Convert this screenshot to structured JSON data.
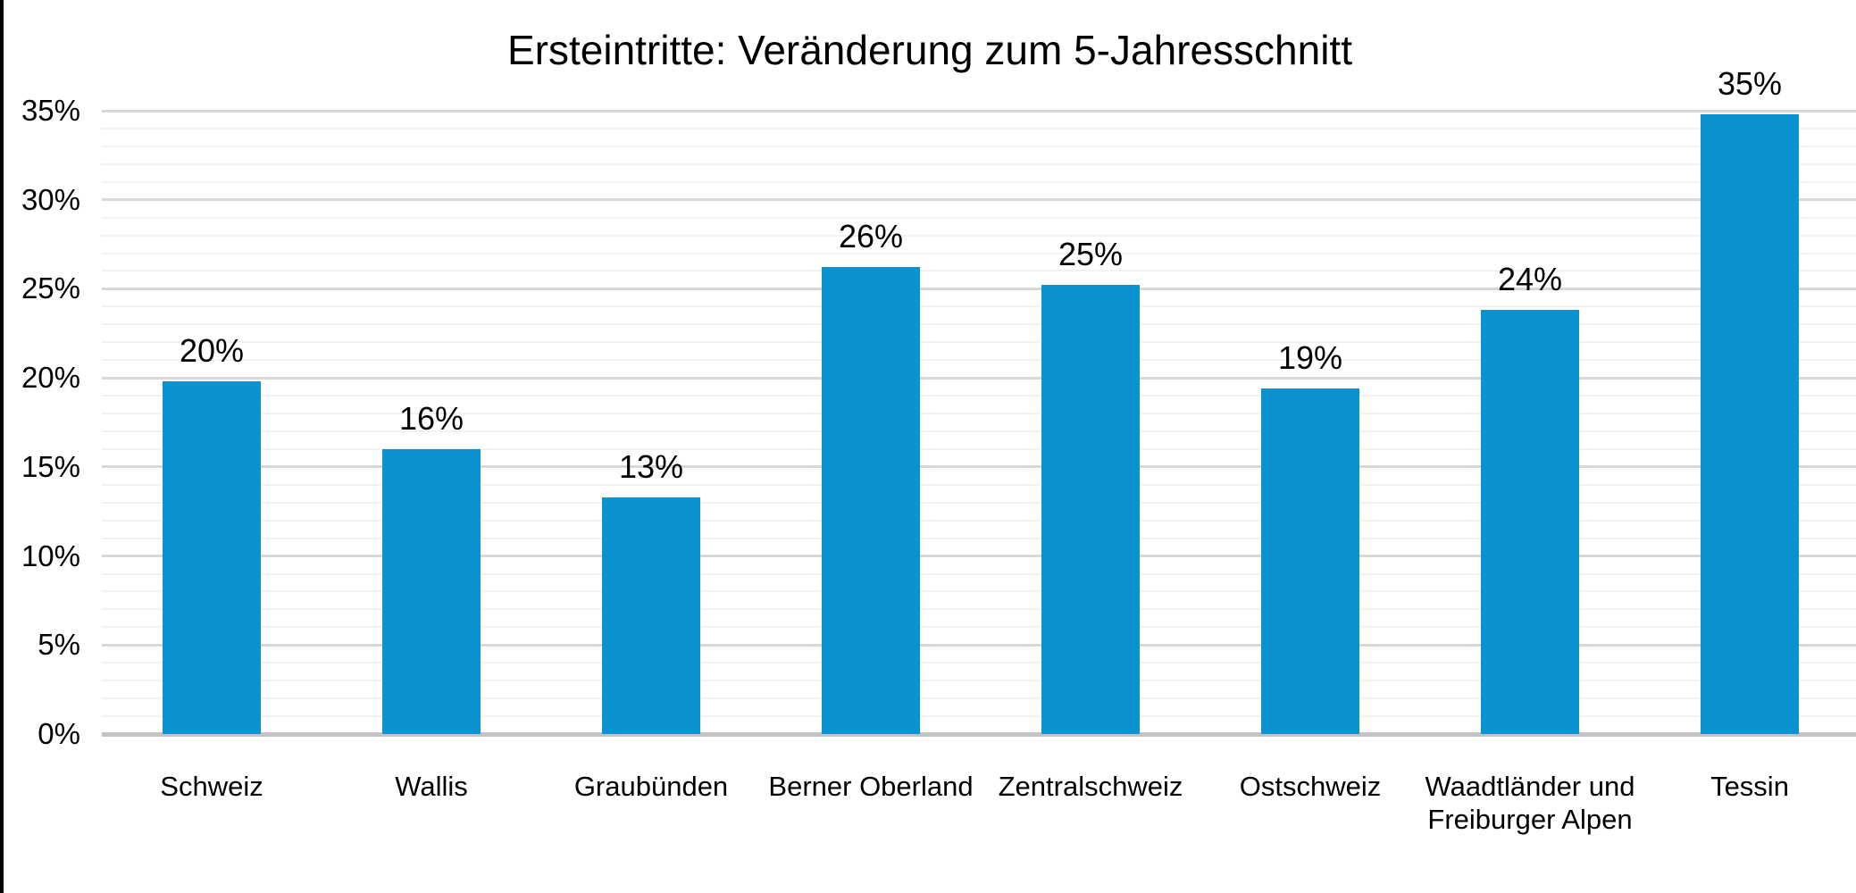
{
  "figure": {
    "background": "#FFFFFF",
    "left_border_color": "#000000"
  },
  "chart_data": {
    "type": "bar",
    "title": "Ersteintritte: Veränderung zum 5-Jahresschnitt",
    "categories": [
      "Schweiz",
      "Wallis",
      "Graubünden",
      "Berner Oberland",
      "Zentralschweiz",
      "Ostschweiz",
      "Waadtländer und Freiburger Alpen",
      "Tessin"
    ],
    "values": [
      19.8,
      16.0,
      13.3,
      26.2,
      25.2,
      19.4,
      23.8,
      34.8
    ],
    "data_labels": [
      "20%",
      "16%",
      "13%",
      "26%",
      "25%",
      "19%",
      "24%",
      "35%"
    ],
    "xlabel": "",
    "ylabel": "",
    "ylim": [
      0,
      35
    ],
    "y_major_step": 5,
    "y_minor_step": 1,
    "y_tick_labels": [
      "0%",
      "5%",
      "10%",
      "15%",
      "20%",
      "25%",
      "30%",
      "35%"
    ],
    "grid": true,
    "legend": false,
    "colors": {
      "bar": "#0A93D0",
      "grid_minor": "#F2F2F2",
      "grid_major": "#D8D8D8",
      "axis_baseline": "#C3C3C3",
      "text": "#000000"
    }
  }
}
